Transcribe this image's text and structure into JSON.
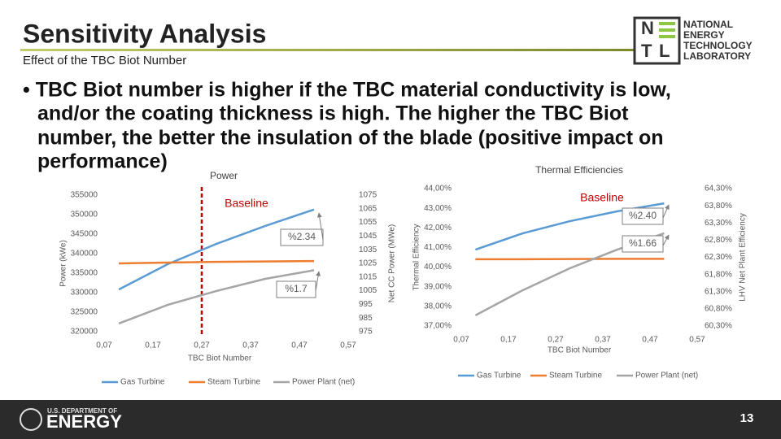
{
  "header": {
    "title": "Sensitivity Analysis",
    "subtitle": "Effect of the TBC Biot Number"
  },
  "logo": {
    "letters": [
      "N",
      "T",
      "L"
    ],
    "lines": [
      "NATIONAL",
      "ENERGY",
      "TECHNOLOGY",
      "LABORATORY"
    ]
  },
  "bullet": [
    "• TBC Biot number is higher if the TBC material conductivity is low,",
    "and/or the coating thickness is high. The higher the TBC Biot",
    "number, the better the insulation of the blade (positive impact on",
    "performance)"
  ],
  "chart_data": [
    {
      "type": "line",
      "title": "Power",
      "x_label": "TBC Biot Number",
      "y_label": "Power (kWe)",
      "y2_label": "Net CC Power (MWe)",
      "x": [
        0.1,
        0.2,
        0.3,
        0.4,
        0.5
      ],
      "series": [
        {
          "name": "Gas Turbine",
          "color": "#5b9bd5",
          "values": [
            330800,
            337300,
            342500,
            347100,
            351300
          ]
        },
        {
          "name": "Steam Turbine",
          "color": "#ed7d31",
          "values": [
            337500,
            337700,
            337900,
            338000,
            338100
          ]
        },
        {
          "name": "Power Plant (net)",
          "color": "#a5a5a5",
          "axis": "y2",
          "values": [
            981,
            994.6,
            1004.8,
            1013.7,
            1020
          ]
        }
      ],
      "xlim": [
        0.07,
        0.57
      ],
      "xticks": [
        {
          "value": 0.07,
          "label": "0,07"
        },
        {
          "value": 0.17,
          "label": "0,17"
        },
        {
          "value": 0.27,
          "label": "0,27"
        },
        {
          "value": 0.37,
          "label": "0,37"
        },
        {
          "value": 0.47,
          "label": "0,47"
        },
        {
          "value": 0.57,
          "label": "0,57"
        }
      ],
      "ylim": [
        320000,
        355000
      ],
      "yticks": [
        320000,
        325000,
        330000,
        335000,
        340000,
        345000,
        350000,
        355000
      ],
      "y2lim": [
        975,
        1075
      ],
      "y2ticks": [
        975,
        985,
        995,
        1005,
        1015,
        1025,
        1035,
        1045,
        1055,
        1065,
        1075
      ],
      "baseline_x": 0.27,
      "annotations": [
        "Baseline",
        "%2.34",
        "%1.7"
      ]
    },
    {
      "type": "line",
      "title": "Thermal Efficiencies",
      "x_label": "TBC Biot Number",
      "y_label": "Thermal Efficiency",
      "y2_label": "LHV Net Plant Efficiency",
      "x": [
        0.1,
        0.2,
        0.3,
        0.4,
        0.5
      ],
      "series": [
        {
          "name": "Gas Turbine",
          "color": "#5b9bd5",
          "values": [
            40.89,
            41.72,
            42.34,
            42.84,
            43.25
          ]
        },
        {
          "name": "Steam Turbine",
          "color": "#ed7d31",
          "values": [
            40.4,
            40.4,
            40.41,
            40.42,
            40.42
          ]
        },
        {
          "name": "Power Plant (net)",
          "color": "#a5a5a5",
          "axis": "y2",
          "values": [
            60.61,
            61.34,
            61.98,
            62.52,
            63.0
          ]
        }
      ],
      "xlim": [
        0.07,
        0.57
      ],
      "xticks": [
        {
          "value": 0.07,
          "label": "0,07"
        },
        {
          "value": 0.17,
          "label": "0,17"
        },
        {
          "value": 0.27,
          "label": "0,27"
        },
        {
          "value": 0.37,
          "label": "0,37"
        },
        {
          "value": 0.47,
          "label": "0,47"
        },
        {
          "value": 0.57,
          "label": "0,57"
        }
      ],
      "ylim": [
        37,
        44
      ],
      "yticks": [
        {
          "value": 37,
          "label": "37,00%"
        },
        {
          "value": 38,
          "label": "38,00%"
        },
        {
          "value": 39,
          "label": "39,00%"
        },
        {
          "value": 40,
          "label": "40,00%"
        },
        {
          "value": 41,
          "label": "41,00%"
        },
        {
          "value": 42,
          "label": "42,00%"
        },
        {
          "value": 43,
          "label": "43,00%"
        },
        {
          "value": 44,
          "label": "44,00%"
        }
      ],
      "y2lim": [
        60.3,
        64.3
      ],
      "y2ticks": [
        {
          "value": 60.3,
          "label": "60,30%"
        },
        {
          "value": 60.8,
          "label": "60,80%"
        },
        {
          "value": 61.3,
          "label": "61,30%"
        },
        {
          "value": 61.8,
          "label": "61,80%"
        },
        {
          "value": 62.3,
          "label": "62,30%"
        },
        {
          "value": 62.8,
          "label": "62,80%"
        },
        {
          "value": 63.3,
          "label": "63,30%"
        },
        {
          "value": 63.8,
          "label": "63,80%"
        },
        {
          "value": 64.3,
          "label": "64,30%"
        }
      ],
      "annotations": [
        "Baseline",
        "%2.40",
        "%1.66"
      ]
    }
  ],
  "footer": {
    "dept_line1": "U.S. DEPARTMENT OF",
    "dept_line2": "ENERGY",
    "page_number": "13"
  }
}
